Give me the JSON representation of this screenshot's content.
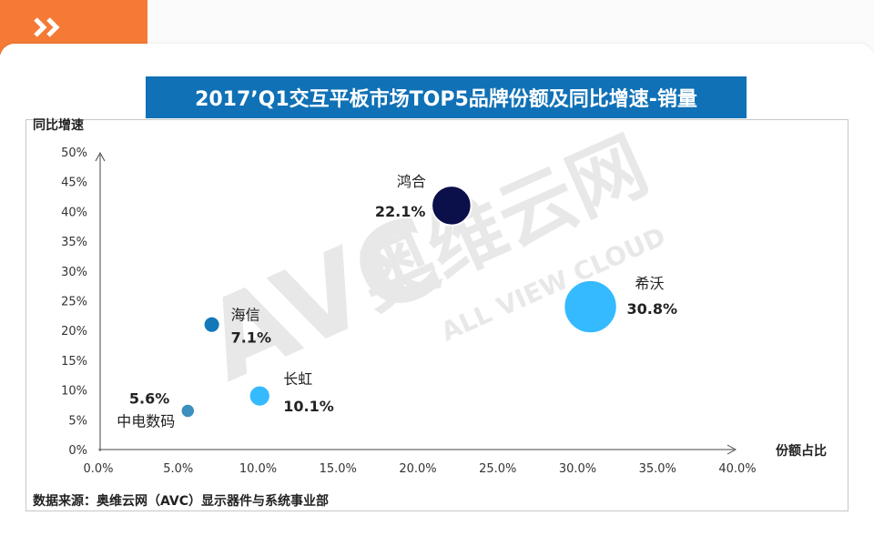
{
  "header": {
    "icon": "double-chevron-right-icon",
    "accent": "#f47a36"
  },
  "title": "2017’Q1交互平板市场TOP5品牌份额及同比增速-销量",
  "source": "数据来源：奥维云网（AVC）显示器件与系统事业部",
  "watermark": {
    "text": "奥维云网",
    "sub": "ALL VIEW CLOUD",
    "logo": "AVC"
  },
  "chart_data": {
    "type": "bubble",
    "title": "2017’Q1交互平板市场TOP5品牌份额及同比增速-销量",
    "xlabel": "份额占比",
    "ylabel": "同比增速",
    "xlim": [
      0,
      40
    ],
    "ylim": [
      0,
      50
    ],
    "x_ticks": [
      "0.0%",
      "5.0%",
      "10.0%",
      "15.0%",
      "20.0%",
      "25.0%",
      "30.0%",
      "35.0%",
      "40.0%"
    ],
    "y_ticks": [
      "0%",
      "5%",
      "10%",
      "15%",
      "20%",
      "25%",
      "30%",
      "35%",
      "40%",
      "45%",
      "50%"
    ],
    "points": [
      {
        "name": "鸿合",
        "share": 22.1,
        "growth": 41,
        "label": "22.1%",
        "color": "#0b0f4a"
      },
      {
        "name": "希沃",
        "share": 30.8,
        "growth": 24,
        "label": "30.8%",
        "color": "#35baff"
      },
      {
        "name": "海信",
        "share": 7.1,
        "growth": 21,
        "label": "7.1%",
        "color": "#1478b8"
      },
      {
        "name": "长虹",
        "share": 10.1,
        "growth": 9,
        "label": "10.1%",
        "color": "#35baff"
      },
      {
        "name": "中电数码",
        "share": 5.6,
        "growth": 6.5,
        "label": "5.6%",
        "color": "#3d8fbe"
      }
    ]
  }
}
